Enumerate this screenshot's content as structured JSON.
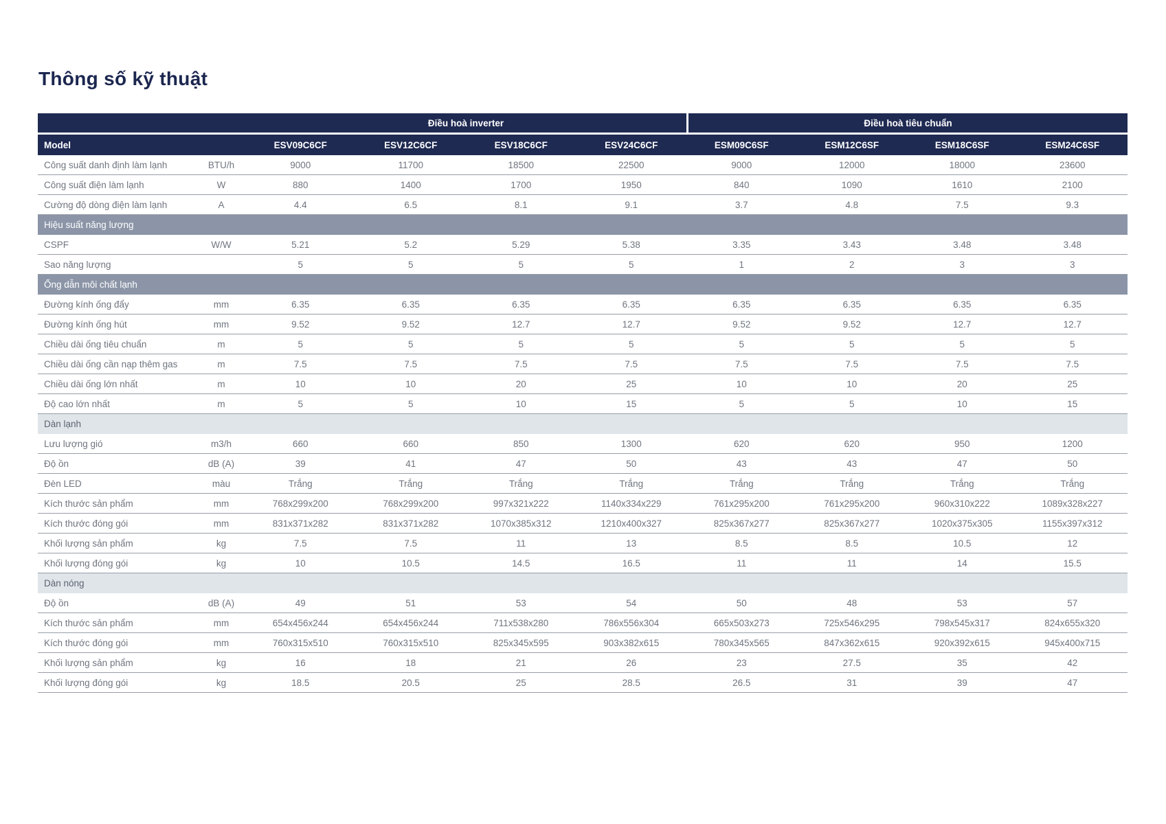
{
  "page": {
    "title": "Thông số kỹ thuật"
  },
  "colors": {
    "header_navy": "#1f2a52",
    "section_dark_bg": "#8b95a7",
    "section_light_bg": "#dfe5e9",
    "body_text": "#6f757f",
    "row_line": "#979da6",
    "title_text": "#1c2750"
  },
  "table": {
    "groups": [
      {
        "label": "Điều hoà inverter",
        "span": 4
      },
      {
        "label": "Điều hoà tiêu chuẩn",
        "span": 4
      }
    ],
    "model_row": {
      "label": "Model",
      "models": [
        "ESV09C6CF",
        "ESV12C6CF",
        "ESV18C6CF",
        "ESV24C6CF",
        "ESM09C6SF",
        "ESM12C6SF",
        "ESM18C6SF",
        "ESM24C6SF"
      ]
    },
    "rows": [
      {
        "type": "data",
        "label": "Công suất danh định làm lạnh",
        "unit": "BTU/h",
        "values": [
          "9000",
          "11700",
          "18500",
          "22500",
          "9000",
          "12000",
          "18000",
          "23600"
        ]
      },
      {
        "type": "data",
        "label": "Công suất điện làm lạnh",
        "unit": "W",
        "values": [
          "880",
          "1400",
          "1700",
          "1950",
          "840",
          "1090",
          "1610",
          "2100"
        ]
      },
      {
        "type": "data",
        "label": "Cường độ dòng điện làm lạnh",
        "unit": "A",
        "values": [
          "4.4",
          "6.5",
          "8.1",
          "9.1",
          "3.7",
          "4.8",
          "7.5",
          "9.3"
        ]
      },
      {
        "type": "section",
        "style": "dark",
        "label": "Hiệu suất năng lượng"
      },
      {
        "type": "data",
        "label": "CSPF",
        "unit": "W/W",
        "values": [
          "5.21",
          "5.2",
          "5.29",
          "5.38",
          "3.35",
          "3.43",
          "3.48",
          "3.48"
        ]
      },
      {
        "type": "data",
        "label": "Sao năng lượng",
        "unit": "",
        "values": [
          "5",
          "5",
          "5",
          "5",
          "1",
          "2",
          "3",
          "3"
        ]
      },
      {
        "type": "section",
        "style": "dark",
        "label": "Ống dẫn môi chất lạnh"
      },
      {
        "type": "data",
        "label": "Đường kính ống đẩy",
        "unit": "mm",
        "values": [
          "6.35",
          "6.35",
          "6.35",
          "6.35",
          "6.35",
          "6.35",
          "6.35",
          "6.35"
        ]
      },
      {
        "type": "data",
        "label": "Đường kính ống hút",
        "unit": "mm",
        "values": [
          "9.52",
          "9.52",
          "12.7",
          "12.7",
          "9.52",
          "9.52",
          "12.7",
          "12.7"
        ]
      },
      {
        "type": "data",
        "label": "Chiều dài ống tiêu chuẩn",
        "unit": "m",
        "values": [
          "5",
          "5",
          "5",
          "5",
          "5",
          "5",
          "5",
          "5"
        ]
      },
      {
        "type": "data",
        "label": "Chiều dài ống cần nạp thêm gas",
        "unit": "m",
        "values": [
          "7.5",
          "7.5",
          "7.5",
          "7.5",
          "7.5",
          "7.5",
          "7.5",
          "7.5"
        ]
      },
      {
        "type": "data",
        "label": "Chiều dài ống lớn nhất",
        "unit": "m",
        "values": [
          "10",
          "10",
          "20",
          "25",
          "10",
          "10",
          "20",
          "25"
        ]
      },
      {
        "type": "data",
        "label": "Độ cao lớn nhất",
        "unit": "m",
        "values": [
          "5",
          "5",
          "10",
          "15",
          "5",
          "5",
          "10",
          "15"
        ]
      },
      {
        "type": "section",
        "style": "light",
        "label": "Dàn lạnh"
      },
      {
        "type": "data",
        "label": "Lưu lượng gió",
        "unit": "m3/h",
        "values": [
          "660",
          "660",
          "850",
          "1300",
          "620",
          "620",
          "950",
          "1200"
        ]
      },
      {
        "type": "data",
        "label": "Độ ồn",
        "unit": "dB (A)",
        "values": [
          "39",
          "41",
          "47",
          "50",
          "43",
          "43",
          "47",
          "50"
        ]
      },
      {
        "type": "data",
        "label": "Đèn LED",
        "unit": "màu",
        "values": [
          "Trắng",
          "Trắng",
          "Trắng",
          "Trắng",
          "Trắng",
          "Trắng",
          "Trắng",
          "Trắng"
        ]
      },
      {
        "type": "data",
        "label": "Kích thước sản phẩm",
        "unit": "mm",
        "values": [
          "768x299x200",
          "768x299x200",
          "997x321x222",
          "1140x334x229",
          "761x295x200",
          "761x295x200",
          "960x310x222",
          "1089x328x227"
        ]
      },
      {
        "type": "data",
        "label": "Kích thước đóng gói",
        "unit": "mm",
        "values": [
          "831x371x282",
          "831x371x282",
          "1070x385x312",
          "1210x400x327",
          "825x367x277",
          "825x367x277",
          "1020x375x305",
          "1155x397x312"
        ]
      },
      {
        "type": "data",
        "label": "Khối lượng sản phẩm",
        "unit": "kg",
        "values": [
          "7.5",
          "7.5",
          "11",
          "13",
          "8.5",
          "8.5",
          "10.5",
          "12"
        ]
      },
      {
        "type": "data",
        "label": "Khối lượng đóng gói",
        "unit": "kg",
        "values": [
          "10",
          "10.5",
          "14.5",
          "16.5",
          "11",
          "11",
          "14",
          "15.5"
        ]
      },
      {
        "type": "section",
        "style": "light",
        "label": "Dàn nóng"
      },
      {
        "type": "data",
        "label": "Độ ồn",
        "unit": "dB (A)",
        "values": [
          "49",
          "51",
          "53",
          "54",
          "50",
          "48",
          "53",
          "57"
        ]
      },
      {
        "type": "data",
        "label": "Kích thước sản phẩm",
        "unit": "mm",
        "values": [
          "654x456x244",
          "654x456x244",
          "711x538x280",
          "786x556x304",
          "665x503x273",
          "725x546x295",
          "798x545x317",
          "824x655x320"
        ]
      },
      {
        "type": "data",
        "label": "Kích thước đóng gói",
        "unit": "mm",
        "values": [
          "760x315x510",
          "760x315x510",
          "825x345x595",
          "903x382x615",
          "780x345x565",
          "847x362x615",
          "920x392x615",
          "945x400x715"
        ]
      },
      {
        "type": "data",
        "label": "Khối lượng sản phẩm",
        "unit": "kg",
        "values": [
          "16",
          "18",
          "21",
          "26",
          "23",
          "27.5",
          "35",
          "42"
        ]
      },
      {
        "type": "data",
        "label": "Khối lượng đóng gói",
        "unit": "kg",
        "values": [
          "18.5",
          "20.5",
          "25",
          "28.5",
          "26.5",
          "31",
          "39",
          "47"
        ]
      }
    ]
  }
}
